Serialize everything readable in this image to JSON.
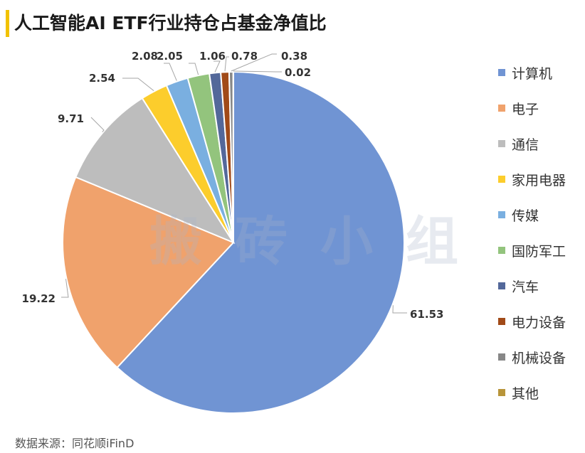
{
  "header": {
    "title": "人工智能AI ETF行业持仓占基金净值比"
  },
  "watermark": "搬砖小组",
  "source": "数据来源：同花顺iFinD",
  "chart_data": {
    "type": "pie",
    "title": "人工智能AI ETF行业持仓占基金净值比",
    "legend_position": "right",
    "slices": [
      {
        "label": "计算机",
        "value": 61.53,
        "value_label": "61.53",
        "color": "#7094d3"
      },
      {
        "label": "电子",
        "value": 19.22,
        "value_label": "19.22",
        "color": "#f0a26c"
      },
      {
        "label": "通信",
        "value": 9.71,
        "value_label": "9.71",
        "color": "#bdbdbd"
      },
      {
        "label": "家用电器",
        "value": 2.54,
        "value_label": "2.54",
        "color": "#fccd2c"
      },
      {
        "label": "传媒",
        "value": 2.08,
        "value_label": "2.08",
        "color": "#7aafe0"
      },
      {
        "label": "国防军工",
        "value": 2.05,
        "value_label": "2.05",
        "color": "#93c47d"
      },
      {
        "label": "汽车",
        "value": 1.06,
        "value_label": "1.06",
        "color": "#53689a"
      },
      {
        "label": "电力设备",
        "value": 0.78,
        "value_label": "0.78",
        "color": "#a14a18"
      },
      {
        "label": "机械设备",
        "value": 0.38,
        "value_label": "0.38",
        "color": "#878787"
      },
      {
        "label": "其他",
        "value": 0.02,
        "value_label": "0.02",
        "color": "#b8953a"
      }
    ]
  }
}
